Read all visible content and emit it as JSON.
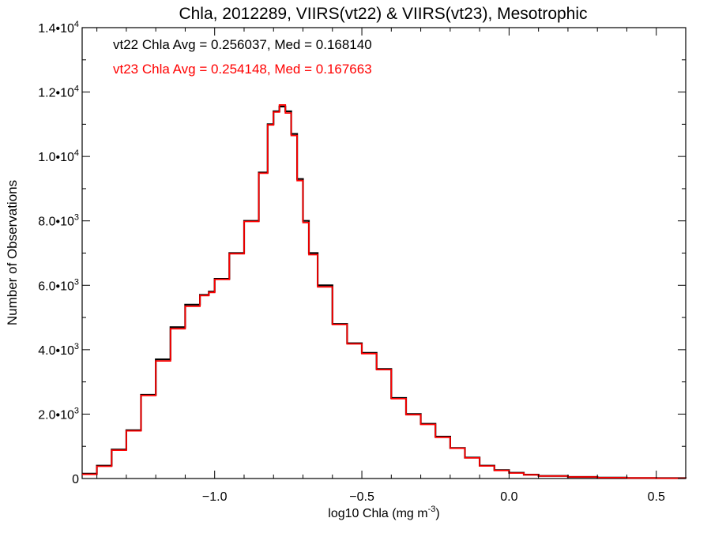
{
  "chart_data": {
    "type": "line",
    "title": "Chla, 2012289, VIIRS(vt22) & VIIRS(vt23), Mesotrophic",
    "xlabel_main": "log10 Chla (mg m",
    "xlabel_exp": "-3",
    "xlabel_close": ")",
    "ylabel": "Number of Observations",
    "xlim": [
      -1.45,
      0.6
    ],
    "ylim": [
      0,
      14000
    ],
    "x_ticks": [
      {
        "value": -1.0,
        "label": "−1.0"
      },
      {
        "value": -0.5,
        "label": "−0.5"
      },
      {
        "value": 0.0,
        "label": "0.0"
      },
      {
        "value": 0.5,
        "label": "0.5"
      }
    ],
    "y_ticks": [
      {
        "value": 0,
        "mant": "0",
        "exp": ""
      },
      {
        "value": 2000,
        "mant": "2.0•10",
        "exp": "3"
      },
      {
        "value": 4000,
        "mant": "4.0•10",
        "exp": "3"
      },
      {
        "value": 6000,
        "mant": "6.0•10",
        "exp": "3"
      },
      {
        "value": 8000,
        "mant": "8.0•10",
        "exp": "3"
      },
      {
        "value": 10000,
        "mant": "1.0•10",
        "exp": "4"
      },
      {
        "value": 12000,
        "mant": "1.2•10",
        "exp": "4"
      },
      {
        "value": 14000,
        "mant": "1.4•10",
        "exp": "4"
      }
    ],
    "annotations": [
      {
        "text": "vt22 Chla Avg = 0.256037, Med = 0.168140",
        "color": "#000000"
      },
      {
        "text": "vt23 Chla Avg = 0.254148, Med = 0.167663",
        "color": "#ff0000"
      }
    ],
    "grid": false,
    "series": [
      {
        "color": "#000000",
        "x": [
          -1.45,
          -1.4,
          -1.35,
          -1.3,
          -1.25,
          -1.2,
          -1.15,
          -1.1,
          -1.05,
          -1.02,
          -1.0,
          -0.95,
          -0.9,
          -0.85,
          -0.82,
          -0.8,
          -0.78,
          -0.76,
          -0.74,
          -0.72,
          -0.7,
          -0.68,
          -0.65,
          -0.6,
          -0.55,
          -0.5,
          -0.45,
          -0.4,
          -0.35,
          -0.3,
          -0.25,
          -0.2,
          -0.15,
          -0.1,
          -0.05,
          0.0,
          0.05,
          0.1,
          0.2,
          0.3,
          0.4,
          0.5,
          0.6
        ],
        "y": [
          150,
          400,
          900,
          1500,
          2600,
          3700,
          4700,
          5400,
          5700,
          5800,
          6200,
          7000,
          8000,
          9500,
          11000,
          11400,
          11550,
          11400,
          10700,
          9300,
          8000,
          7000,
          6000,
          4800,
          4200,
          3900,
          3400,
          2500,
          2000,
          1700,
          1300,
          950,
          650,
          400,
          260,
          180,
          120,
          80,
          50,
          30,
          18,
          12,
          6
        ]
      },
      {
        "color": "#ff0000",
        "x": [
          -1.45,
          -1.4,
          -1.35,
          -1.3,
          -1.25,
          -1.2,
          -1.15,
          -1.1,
          -1.05,
          -1.02,
          -1.0,
          -0.95,
          -0.9,
          -0.85,
          -0.82,
          -0.8,
          -0.78,
          -0.76,
          -0.74,
          -0.72,
          -0.7,
          -0.68,
          -0.65,
          -0.6,
          -0.55,
          -0.5,
          -0.45,
          -0.4,
          -0.35,
          -0.3,
          -0.25,
          -0.2,
          -0.15,
          -0.1,
          -0.05,
          0.0,
          0.05,
          0.1,
          0.2,
          0.3,
          0.4,
          0.5,
          0.6
        ],
        "y": [
          130,
          380,
          880,
          1480,
          2580,
          3650,
          4650,
          5350,
          5680,
          5780,
          6180,
          6980,
          7980,
          9480,
          10980,
          11380,
          11600,
          11350,
          10650,
          9250,
          7950,
          6950,
          5950,
          4780,
          4180,
          3880,
          3380,
          2480,
          1980,
          1680,
          1280,
          940,
          640,
          390,
          250,
          170,
          115,
          75,
          48,
          28,
          17,
          11,
          5
        ]
      }
    ]
  }
}
